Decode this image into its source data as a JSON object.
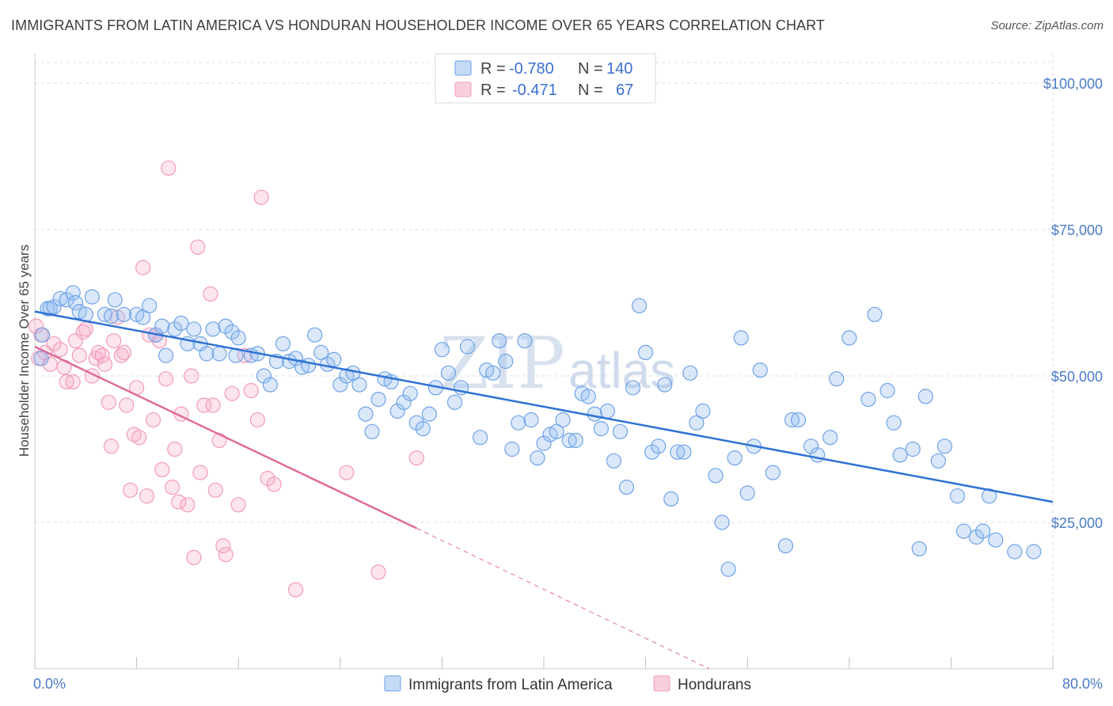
{
  "title": "IMMIGRANTS FROM LATIN AMERICA VS HONDURAN HOUSEHOLDER INCOME OVER 65 YEARS CORRELATION CHART",
  "source": "Source: ZipAtlas.com",
  "watermark": {
    "zip": "ZIP",
    "atlas": "atlas"
  },
  "colors": {
    "blue": "#6fa3e6",
    "blue_line": "#2f73d3",
    "pink": "#f29bb8",
    "pink_line": "#e06c9a",
    "grid": "#dcdcdc"
  },
  "legend": {
    "rows": [
      {
        "r_label": "R =",
        "r_value": "-0.780",
        "n_label": "N =",
        "n_value": "140"
      },
      {
        "r_label": "R =",
        "r_value": "-0.471",
        "n_label": "N =",
        "n_value": "67"
      }
    ]
  },
  "chart_data": {
    "type": "scatter",
    "xlabel": "",
    "ylabel": "Householder Income Over 65 years",
    "xlim": [
      0,
      80
    ],
    "ylim": [
      0,
      105000
    ],
    "x_tick_labels": [
      "0.0%",
      "80.0%"
    ],
    "y_ticks": [
      25000,
      50000,
      75000,
      100000
    ],
    "y_tick_labels": [
      "$25,000",
      "$50,000",
      "$75,000",
      "$100,000"
    ],
    "grid": true,
    "legend_position": "top-center",
    "series": [
      {
        "name": "Immigrants from Latin America",
        "color": "#6fa3e6",
        "trend": {
          "x0": 0,
          "y0": 61000,
          "x1": 80,
          "y1": 28500
        },
        "points": [
          [
            0.5,
            53000
          ],
          [
            0.6,
            57000
          ],
          [
            1.0,
            61500
          ],
          [
            1.2,
            61500
          ],
          [
            1.5,
            61800
          ],
          [
            2.0,
            63200
          ],
          [
            2.5,
            63000
          ],
          [
            3.0,
            64200
          ],
          [
            3.2,
            62500
          ],
          [
            3.5,
            61000
          ],
          [
            4.0,
            60500
          ],
          [
            4.5,
            63500
          ],
          [
            5.5,
            60500
          ],
          [
            6.0,
            60200
          ],
          [
            6.3,
            63000
          ],
          [
            7.0,
            60500
          ],
          [
            8.0,
            60500
          ],
          [
            8.5,
            60000
          ],
          [
            9.0,
            62000
          ],
          [
            9.5,
            57000
          ],
          [
            10.0,
            58500
          ],
          [
            10.3,
            53500
          ],
          [
            11.0,
            58000
          ],
          [
            11.5,
            59000
          ],
          [
            12.0,
            55500
          ],
          [
            12.5,
            58000
          ],
          [
            13.0,
            55500
          ],
          [
            13.5,
            53800
          ],
          [
            14.0,
            58000
          ],
          [
            14.5,
            53800
          ],
          [
            15.0,
            58500
          ],
          [
            15.5,
            57500
          ],
          [
            15.8,
            53500
          ],
          [
            16.0,
            56500
          ],
          [
            17.0,
            53500
          ],
          [
            17.5,
            53800
          ],
          [
            18.0,
            50000
          ],
          [
            18.5,
            48500
          ],
          [
            19.0,
            52500
          ],
          [
            19.5,
            55500
          ],
          [
            20.0,
            52500
          ],
          [
            20.5,
            53000
          ],
          [
            21.0,
            51500
          ],
          [
            21.5,
            51800
          ],
          [
            22.0,
            57000
          ],
          [
            22.5,
            54000
          ],
          [
            23.0,
            52000
          ],
          [
            23.5,
            52800
          ],
          [
            24.0,
            48500
          ],
          [
            24.5,
            50000
          ],
          [
            25.0,
            50500
          ],
          [
            25.5,
            48500
          ],
          [
            26.0,
            43500
          ],
          [
            26.5,
            40500
          ],
          [
            27.0,
            46000
          ],
          [
            27.5,
            49500
          ],
          [
            28.0,
            49000
          ],
          [
            28.5,
            44000
          ],
          [
            29.0,
            45500
          ],
          [
            29.5,
            47000
          ],
          [
            30.0,
            42000
          ],
          [
            30.5,
            41000
          ],
          [
            31.0,
            43500
          ],
          [
            31.5,
            48000
          ],
          [
            32.0,
            54500
          ],
          [
            32.5,
            50500
          ],
          [
            33.0,
            45500
          ],
          [
            33.5,
            48000
          ],
          [
            34.0,
            55000
          ],
          [
            35.0,
            39500
          ],
          [
            35.5,
            51000
          ],
          [
            36.0,
            50500
          ],
          [
            36.5,
            56000
          ],
          [
            37.0,
            52500
          ],
          [
            37.5,
            37500
          ],
          [
            38.0,
            42000
          ],
          [
            38.5,
            56000
          ],
          [
            39.0,
            42500
          ],
          [
            39.5,
            36000
          ],
          [
            40.0,
            38500
          ],
          [
            40.5,
            40000
          ],
          [
            41.0,
            40500
          ],
          [
            41.5,
            42500
          ],
          [
            42.0,
            39000
          ],
          [
            42.5,
            39000
          ],
          [
            43.0,
            47000
          ],
          [
            43.5,
            46500
          ],
          [
            44.0,
            43500
          ],
          [
            44.5,
            41000
          ],
          [
            45.0,
            44000
          ],
          [
            45.5,
            35500
          ],
          [
            46.0,
            40500
          ],
          [
            46.5,
            31000
          ],
          [
            47.0,
            48000
          ],
          [
            47.5,
            62000
          ],
          [
            48.0,
            54000
          ],
          [
            48.5,
            37000
          ],
          [
            49.0,
            38000
          ],
          [
            49.5,
            48500
          ],
          [
            50.0,
            29000
          ],
          [
            50.5,
            37000
          ],
          [
            51.0,
            37000
          ],
          [
            51.5,
            50500
          ],
          [
            52.0,
            42000
          ],
          [
            52.5,
            44000
          ],
          [
            53.5,
            33000
          ],
          [
            54.0,
            25000
          ],
          [
            54.5,
            17000
          ],
          [
            55.0,
            36000
          ],
          [
            55.5,
            56500
          ],
          [
            56.0,
            30000
          ],
          [
            56.5,
            38000
          ],
          [
            57.0,
            51000
          ],
          [
            58.0,
            33500
          ],
          [
            59.0,
            21000
          ],
          [
            59.5,
            42500
          ],
          [
            60.0,
            42500
          ],
          [
            61.0,
            38000
          ],
          [
            61.5,
            36500
          ],
          [
            62.5,
            39500
          ],
          [
            63.0,
            49500
          ],
          [
            64.0,
            56500
          ],
          [
            65.5,
            46000
          ],
          [
            66.0,
            60500
          ],
          [
            67.0,
            47500
          ],
          [
            67.5,
            42000
          ],
          [
            68.0,
            36500
          ],
          [
            69.0,
            37500
          ],
          [
            69.5,
            20500
          ],
          [
            70.0,
            46500
          ],
          [
            71.0,
            35500
          ],
          [
            71.5,
            38000
          ],
          [
            72.5,
            29500
          ],
          [
            73.0,
            23500
          ],
          [
            74.0,
            22500
          ],
          [
            74.5,
            23500
          ],
          [
            75.0,
            29500
          ],
          [
            75.5,
            22000
          ],
          [
            77.0,
            20000
          ],
          [
            78.5,
            20000
          ]
        ]
      },
      {
        "name": "Hondurans",
        "color": "#f29bb8",
        "trend": {
          "x0": 0,
          "y0": 55000,
          "x1": 30,
          "y1": 24000,
          "x_dash_end": 53,
          "y_dash_end": 0
        },
        "points": [
          [
            0.3,
            53000
          ],
          [
            0.5,
            57000
          ],
          [
            0.8,
            54000
          ],
          [
            1.2,
            52000
          ],
          [
            1.5,
            55500
          ],
          [
            2.0,
            54500
          ],
          [
            2.3,
            51500
          ],
          [
            2.5,
            49000
          ],
          [
            3.0,
            49000
          ],
          [
            3.2,
            56000
          ],
          [
            3.5,
            53500
          ],
          [
            3.8,
            57500
          ],
          [
            4.0,
            58000
          ],
          [
            4.5,
            50000
          ],
          [
            4.8,
            53000
          ],
          [
            5.0,
            54000
          ],
          [
            5.3,
            53500
          ],
          [
            5.5,
            52000
          ],
          [
            5.8,
            45500
          ],
          [
            6.0,
            38000
          ],
          [
            6.2,
            56000
          ],
          [
            6.5,
            60000
          ],
          [
            6.8,
            53500
          ],
          [
            7.0,
            54000
          ],
          [
            7.2,
            45000
          ],
          [
            7.5,
            30500
          ],
          [
            7.8,
            40000
          ],
          [
            8.0,
            48000
          ],
          [
            8.2,
            39500
          ],
          [
            8.5,
            68500
          ],
          [
            8.8,
            29500
          ],
          [
            9.0,
            57000
          ],
          [
            9.3,
            42500
          ],
          [
            9.5,
            57000
          ],
          [
            9.8,
            56000
          ],
          [
            10.0,
            34000
          ],
          [
            10.3,
            49500
          ],
          [
            10.5,
            85500
          ],
          [
            10.8,
            31000
          ],
          [
            11.0,
            37500
          ],
          [
            11.3,
            28500
          ],
          [
            11.5,
            43500
          ],
          [
            12.0,
            28000
          ],
          [
            12.3,
            50000
          ],
          [
            12.5,
            19000
          ],
          [
            12.8,
            72000
          ],
          [
            13.0,
            33500
          ],
          [
            13.3,
            45000
          ],
          [
            13.8,
            64000
          ],
          [
            14.0,
            45000
          ],
          [
            14.2,
            30500
          ],
          [
            14.5,
            39000
          ],
          [
            14.8,
            21000
          ],
          [
            15.0,
            19500
          ],
          [
            15.5,
            47000
          ],
          [
            16.0,
            28000
          ],
          [
            16.5,
            53500
          ],
          [
            17.0,
            47500
          ],
          [
            17.5,
            42500
          ],
          [
            17.8,
            80500
          ],
          [
            18.3,
            32500
          ],
          [
            18.8,
            31500
          ],
          [
            20.5,
            13500
          ],
          [
            24.5,
            33500
          ],
          [
            27.0,
            16500
          ],
          [
            30.0,
            36000
          ],
          [
            0.1,
            58500
          ]
        ]
      }
    ]
  },
  "bottom_legend": [
    {
      "label": "Immigrants from Latin America"
    },
    {
      "label": "Hondurans"
    }
  ]
}
